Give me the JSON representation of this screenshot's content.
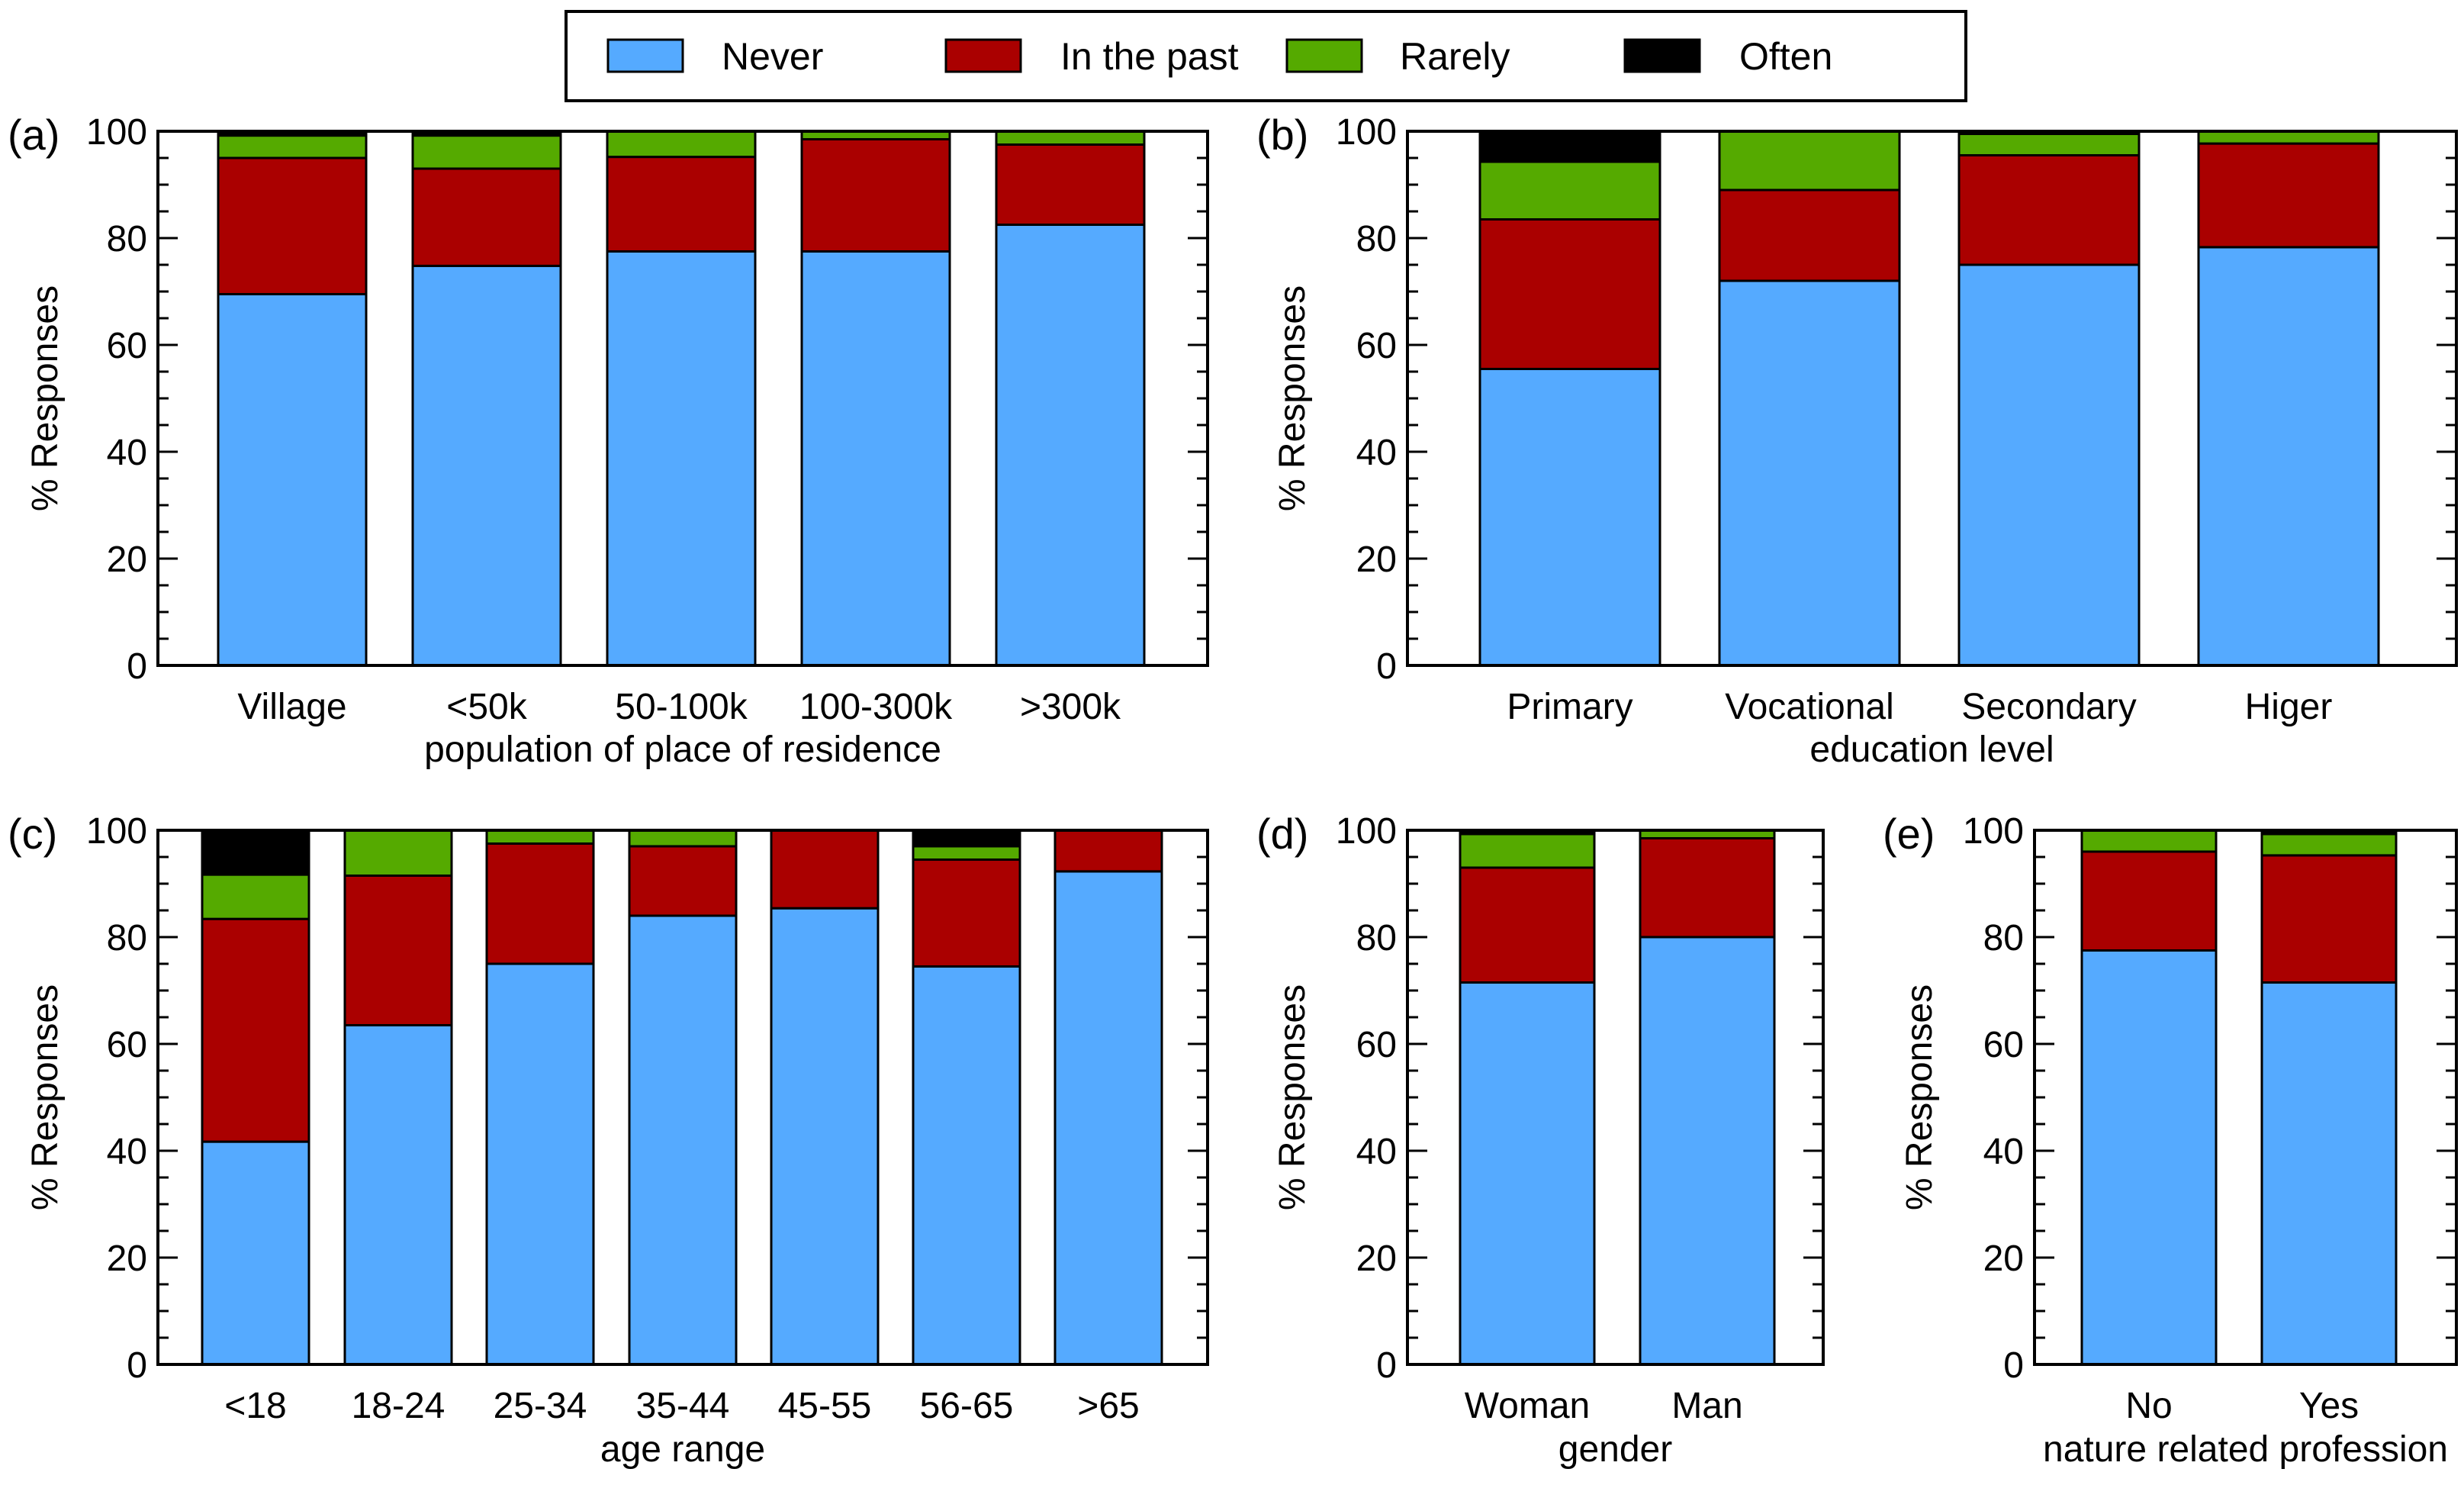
{
  "legend": {
    "items": [
      {
        "label": "Never",
        "color": "#55aaff"
      },
      {
        "label": "In the past",
        "color": "#aa0000"
      },
      {
        "label": "Rarely",
        "color": "#55aa00"
      },
      {
        "label": "Often",
        "color": "#000000"
      }
    ]
  },
  "chart_data": [
    {
      "type": "bar",
      "stacked": true,
      "panel": "(a)",
      "xlabel": "population of place of residence",
      "ylabel": "% Responses",
      "ylim": [
        0,
        100
      ],
      "yticks": [
        "0",
        "20",
        "40",
        "60",
        "80",
        "100"
      ],
      "categories": [
        "Village",
        "<50k",
        "50-100k",
        "100-300k",
        ">300k"
      ],
      "series": [
        {
          "name": "Never",
          "values": [
            69.5,
            74.8,
            77.5,
            77.5,
            82.5
          ]
        },
        {
          "name": "In the past",
          "values": [
            25.5,
            18.2,
            17.7,
            21.0,
            15.0
          ]
        },
        {
          "name": "Rarely",
          "values": [
            4.2,
            6.2,
            4.8,
            1.5,
            2.5
          ]
        },
        {
          "name": "Often",
          "values": [
            0.8,
            0.8,
            0.0,
            0.0,
            0.0
          ]
        }
      ]
    },
    {
      "type": "bar",
      "stacked": true,
      "panel": "(b)",
      "xlabel": "education level",
      "ylabel": "% Responses",
      "ylim": [
        0,
        100
      ],
      "yticks": [
        "0",
        "20",
        "40",
        "60",
        "80",
        "100"
      ],
      "categories": [
        "Primary",
        "Vocational",
        "Secondary",
        "Higer"
      ],
      "series": [
        {
          "name": "Never",
          "values": [
            55.5,
            72.0,
            75.0,
            78.3
          ]
        },
        {
          "name": "In the past",
          "values": [
            28.0,
            17.0,
            20.5,
            19.4
          ]
        },
        {
          "name": "Rarely",
          "values": [
            10.8,
            11.0,
            4.0,
            2.3
          ]
        },
        {
          "name": "Often",
          "values": [
            5.7,
            0.0,
            0.5,
            0.0
          ]
        }
      ]
    },
    {
      "type": "bar",
      "stacked": true,
      "panel": "(c)",
      "xlabel": "age range",
      "ylabel": "% Responses",
      "ylim": [
        0,
        100
      ],
      "yticks": [
        "0",
        "20",
        "40",
        "60",
        "80",
        "100"
      ],
      "categories": [
        "<18",
        "18-24",
        "25-34",
        "35-44",
        "45-55",
        "56-65",
        ">65"
      ],
      "series": [
        {
          "name": "Never",
          "values": [
            41.7,
            63.5,
            75.0,
            84.0,
            85.4,
            74.5,
            92.3
          ]
        },
        {
          "name": "In the past",
          "values": [
            41.7,
            28.0,
            22.5,
            13.0,
            14.6,
            20.0,
            7.7
          ]
        },
        {
          "name": "Rarely",
          "values": [
            8.3,
            8.5,
            2.5,
            3.0,
            0.0,
            2.5,
            0.0
          ]
        },
        {
          "name": "Often",
          "values": [
            8.3,
            0.0,
            0.0,
            0.0,
            0.0,
            3.0,
            0.0
          ]
        }
      ]
    },
    {
      "type": "bar",
      "stacked": true,
      "panel": "(d)",
      "xlabel": "gender",
      "ylabel": "% Responses",
      "ylim": [
        0,
        100
      ],
      "yticks": [
        "0",
        "20",
        "40",
        "60",
        "80",
        "100"
      ],
      "categories": [
        "Woman",
        "Man"
      ],
      "series": [
        {
          "name": "Never",
          "values": [
            71.5,
            80.0
          ]
        },
        {
          "name": "In the past",
          "values": [
            21.5,
            18.5
          ]
        },
        {
          "name": "Rarely",
          "values": [
            6.3,
            1.5
          ]
        },
        {
          "name": "Often",
          "values": [
            0.7,
            0.0
          ]
        }
      ]
    },
    {
      "type": "bar",
      "stacked": true,
      "panel": "(e)",
      "xlabel": "nature related profession",
      "ylabel": "% Responses",
      "ylim": [
        0,
        100
      ],
      "yticks": [
        "0",
        "20",
        "40",
        "60",
        "80",
        "100"
      ],
      "categories": [
        "No",
        "Yes"
      ],
      "series": [
        {
          "name": "Never",
          "values": [
            77.5,
            71.5
          ]
        },
        {
          "name": "In the past",
          "values": [
            18.5,
            23.8
          ]
        },
        {
          "name": "Rarely",
          "values": [
            4.0,
            4.0
          ]
        },
        {
          "name": "Often",
          "values": [
            0.0,
            0.7
          ]
        }
      ]
    }
  ]
}
